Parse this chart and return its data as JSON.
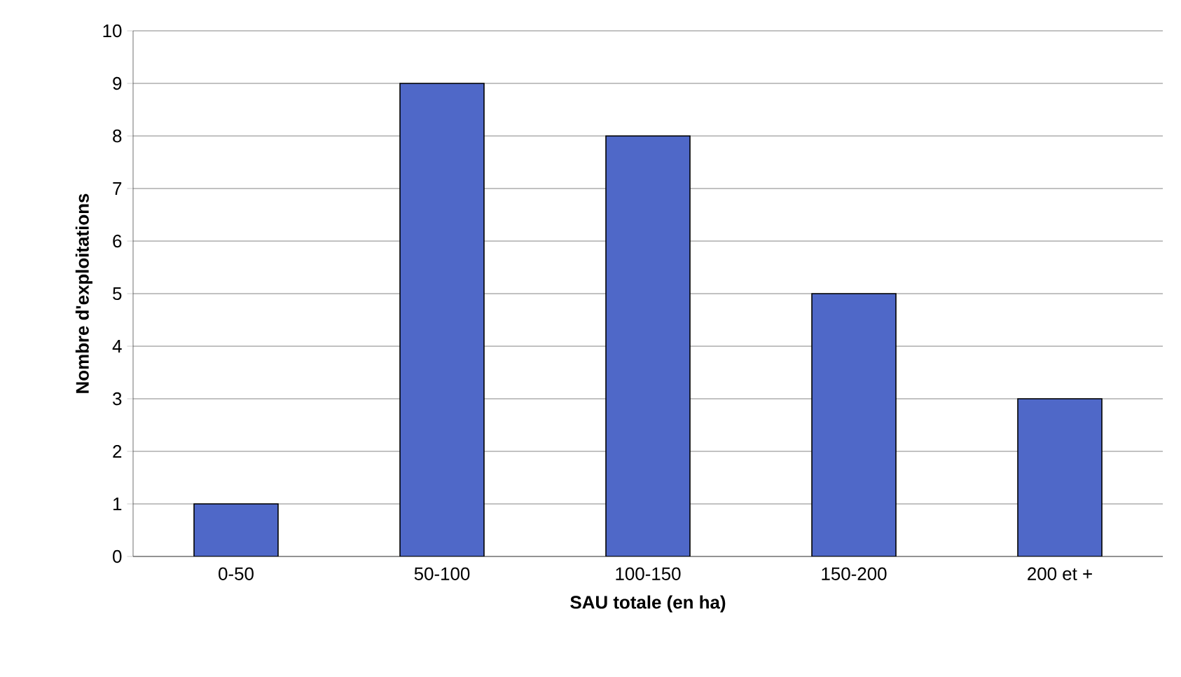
{
  "chart_data": {
    "type": "bar",
    "xlabel": "SAU totale (en ha)",
    "ylabel": "Nombre d'exploitations",
    "categories": [
      "0-50",
      "50-100",
      "100-150",
      "150-200",
      "200 et +"
    ],
    "values": [
      1,
      9,
      8,
      5,
      3
    ],
    "color": "#4f68c8",
    "ylim": [
      0,
      10
    ],
    "yticks": [
      0,
      1,
      2,
      3,
      4,
      5,
      6,
      7,
      8,
      9,
      10
    ],
    "grid": "y"
  }
}
